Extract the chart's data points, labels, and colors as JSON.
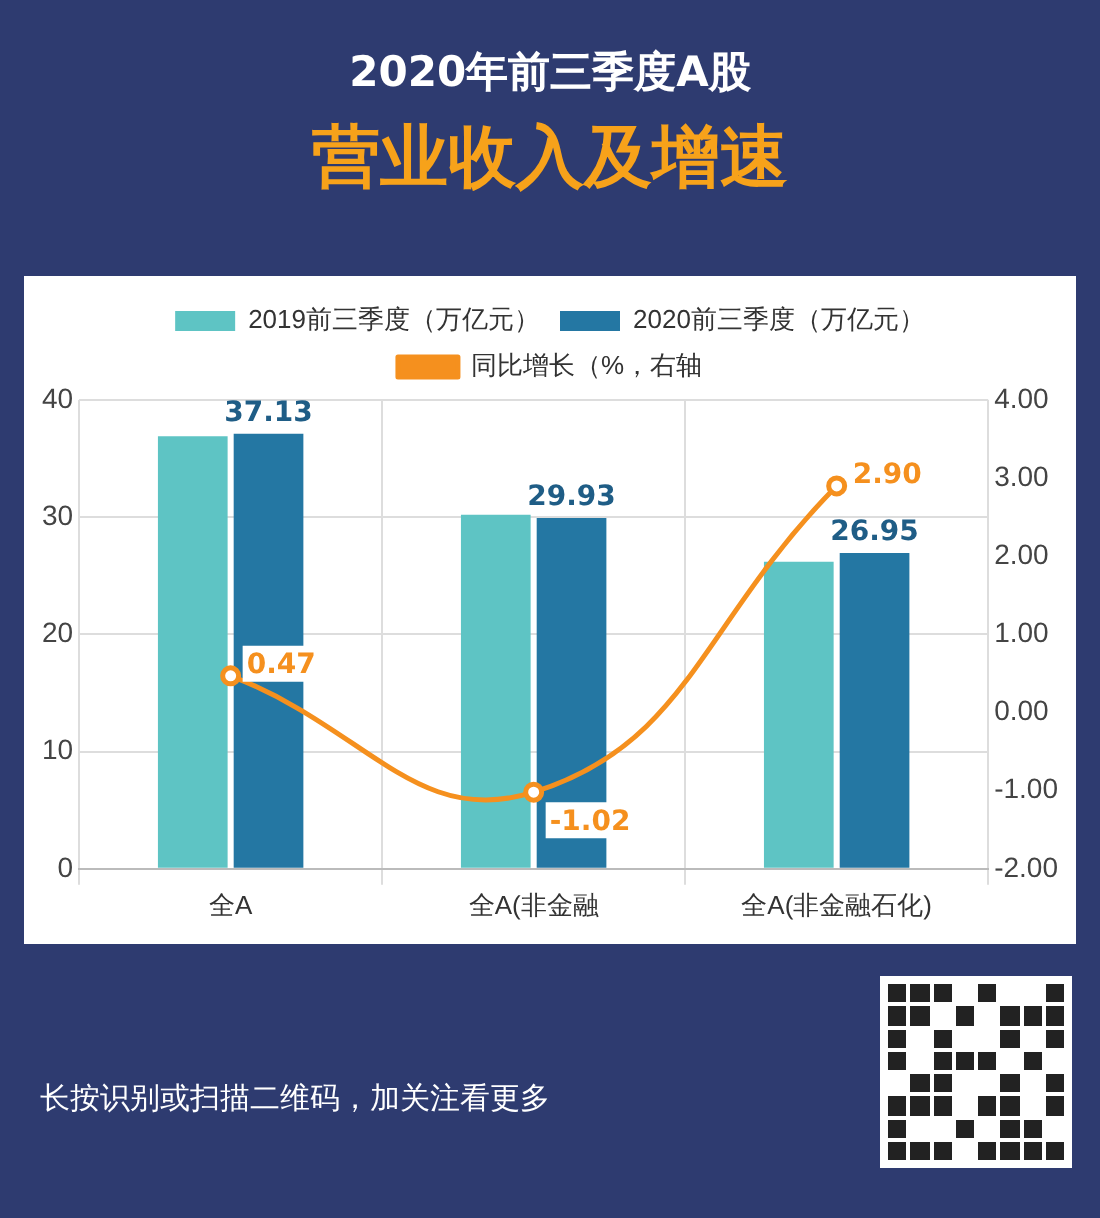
{
  "chart_data": {
    "type": "bar",
    "title": "2020年前三季度A股",
    "subtitle": "营业收入及增速",
    "categories": [
      "全A",
      "全A(非金融",
      "全A(非金融石化)"
    ],
    "series": [
      {
        "name": "2019前三季度（万亿元）",
        "color": "#5ec4c4",
        "values": [
          36.9,
          30.2,
          26.2
        ]
      },
      {
        "name": "2020前三季度（万亿元）",
        "color": "#2477a3",
        "values": [
          37.13,
          29.93,
          26.95
        ],
        "value_labels": [
          "37.13",
          "29.93",
          "26.95"
        ]
      },
      {
        "name": "同比增长（%，右轴",
        "type": "line",
        "axis": "y2",
        "color": "#f5901e",
        "values": [
          0.47,
          -1.02,
          2.9
        ],
        "value_labels": [
          "0.47",
          "-1.02",
          "2.90"
        ]
      }
    ],
    "ylim": [
      0,
      40
    ],
    "yticks": [
      0,
      10,
      20,
      30,
      40
    ],
    "y2lim": [
      -2,
      4
    ],
    "y2ticks": [
      {
        "value": -2,
        "label": "-2.00"
      },
      {
        "value": -1,
        "label": "-1.00"
      },
      {
        "value": 0,
        "label": "0.00"
      },
      {
        "value": 1,
        "label": "1.00"
      },
      {
        "value": 2,
        "label": "2.00"
      },
      {
        "value": 3,
        "label": "3.00"
      },
      {
        "value": 4,
        "label": "4.00"
      }
    ],
    "grid": true,
    "legend": "top",
    "marker": "circle",
    "line_style": "solid",
    "annotations": [
      "长按识别或扫描二维码，加关注看更多"
    ]
  }
}
